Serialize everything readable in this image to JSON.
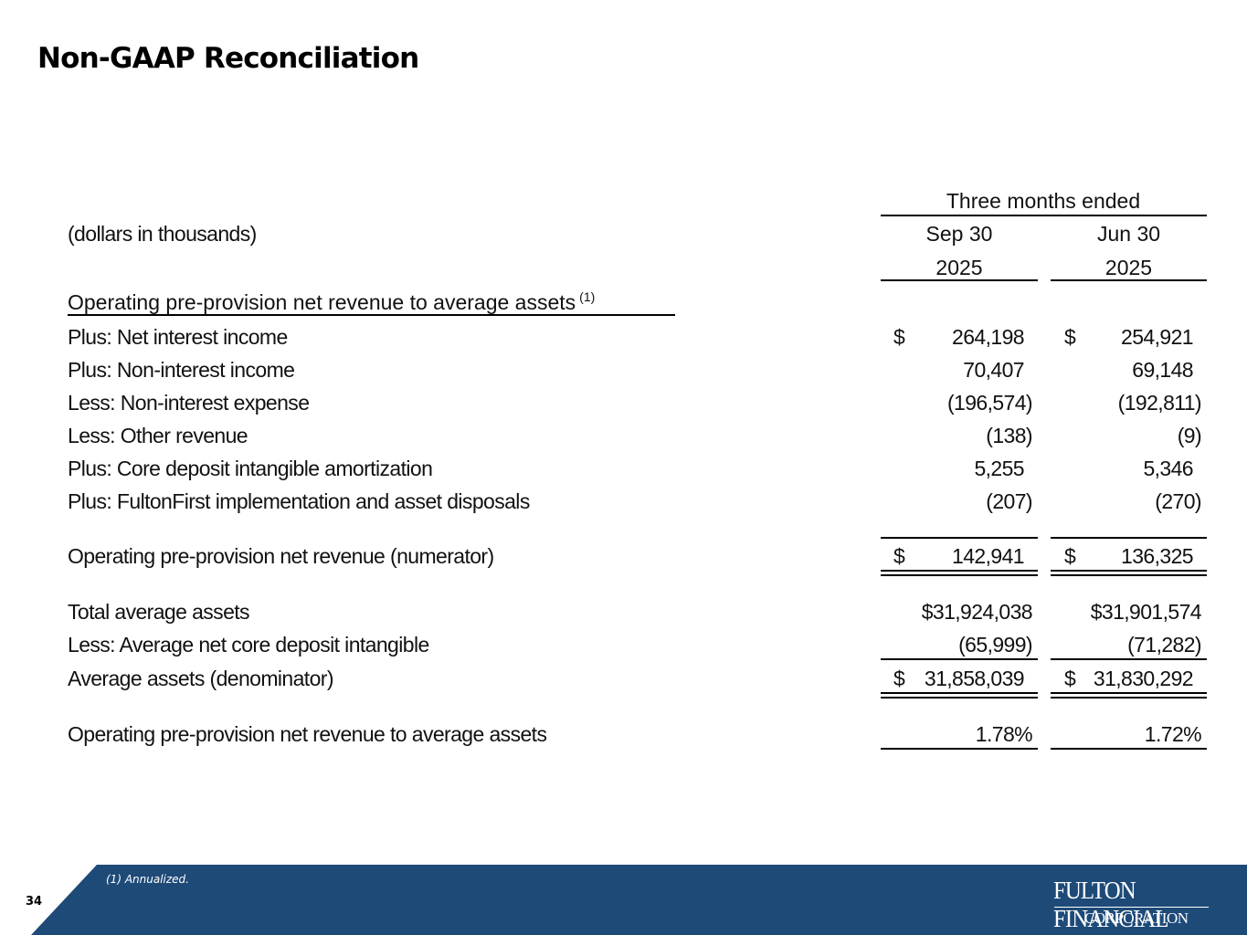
{
  "title": "Non-GAAP Reconciliation",
  "header": {
    "group_label": "Three months ended",
    "units_label": "(dollars in thousands)",
    "columns": [
      {
        "month": "Sep 30",
        "year": "2025"
      },
      {
        "month": "Jun 30",
        "year": "2025"
      }
    ]
  },
  "section": {
    "title": "Operating pre-provision net revenue to average assets",
    "footnote_ref": "(1)"
  },
  "currency_symbol": "$",
  "rows": {
    "net_interest_income": {
      "label": "Plus: Net interest income",
      "sep": "264,198",
      "jun": "254,921"
    },
    "non_interest_income": {
      "label": "Plus: Non-interest income",
      "sep": "70,407",
      "jun": "69,148"
    },
    "non_interest_expense": {
      "label": "Less: Non-interest expense",
      "sep": "(196,574)",
      "jun": "(192,811)"
    },
    "other_revenue": {
      "label": "Less: Other revenue",
      "sep": "(138)",
      "jun": "(9)"
    },
    "core_deposit_amort": {
      "label": "Plus: Core deposit intangible amortization",
      "sep": "5,255",
      "jun": "5,346"
    },
    "fultonfirst": {
      "label": "Plus: FultonFirst implementation and asset disposals",
      "sep": "(207)",
      "jun": "(270)"
    },
    "numerator": {
      "label": "Operating pre-provision net revenue (numerator)",
      "sep": "142,941",
      "jun": "136,325"
    },
    "total_avg_assets": {
      "label": "Total average assets",
      "sep": "$31,924,038",
      "jun": "$31,901,574"
    },
    "avg_core_deposit": {
      "label": "Less: Average net core deposit intangible",
      "sep": "(65,999)",
      "jun": "(71,282)"
    },
    "denominator": {
      "label": "Average assets (denominator)",
      "sep": "31,858,039",
      "jun": "31,830,292"
    },
    "ratio": {
      "label": "Operating pre-provision net revenue to average assets",
      "sep": "1.78%",
      "jun": "1.72%"
    }
  },
  "footer": {
    "page_number": "34",
    "footnote": "(1) Annualized.",
    "logo_line1": "FULTON FINANCIAL",
    "logo_line2": "CORPORATION",
    "band_color": "#1e4a78"
  }
}
